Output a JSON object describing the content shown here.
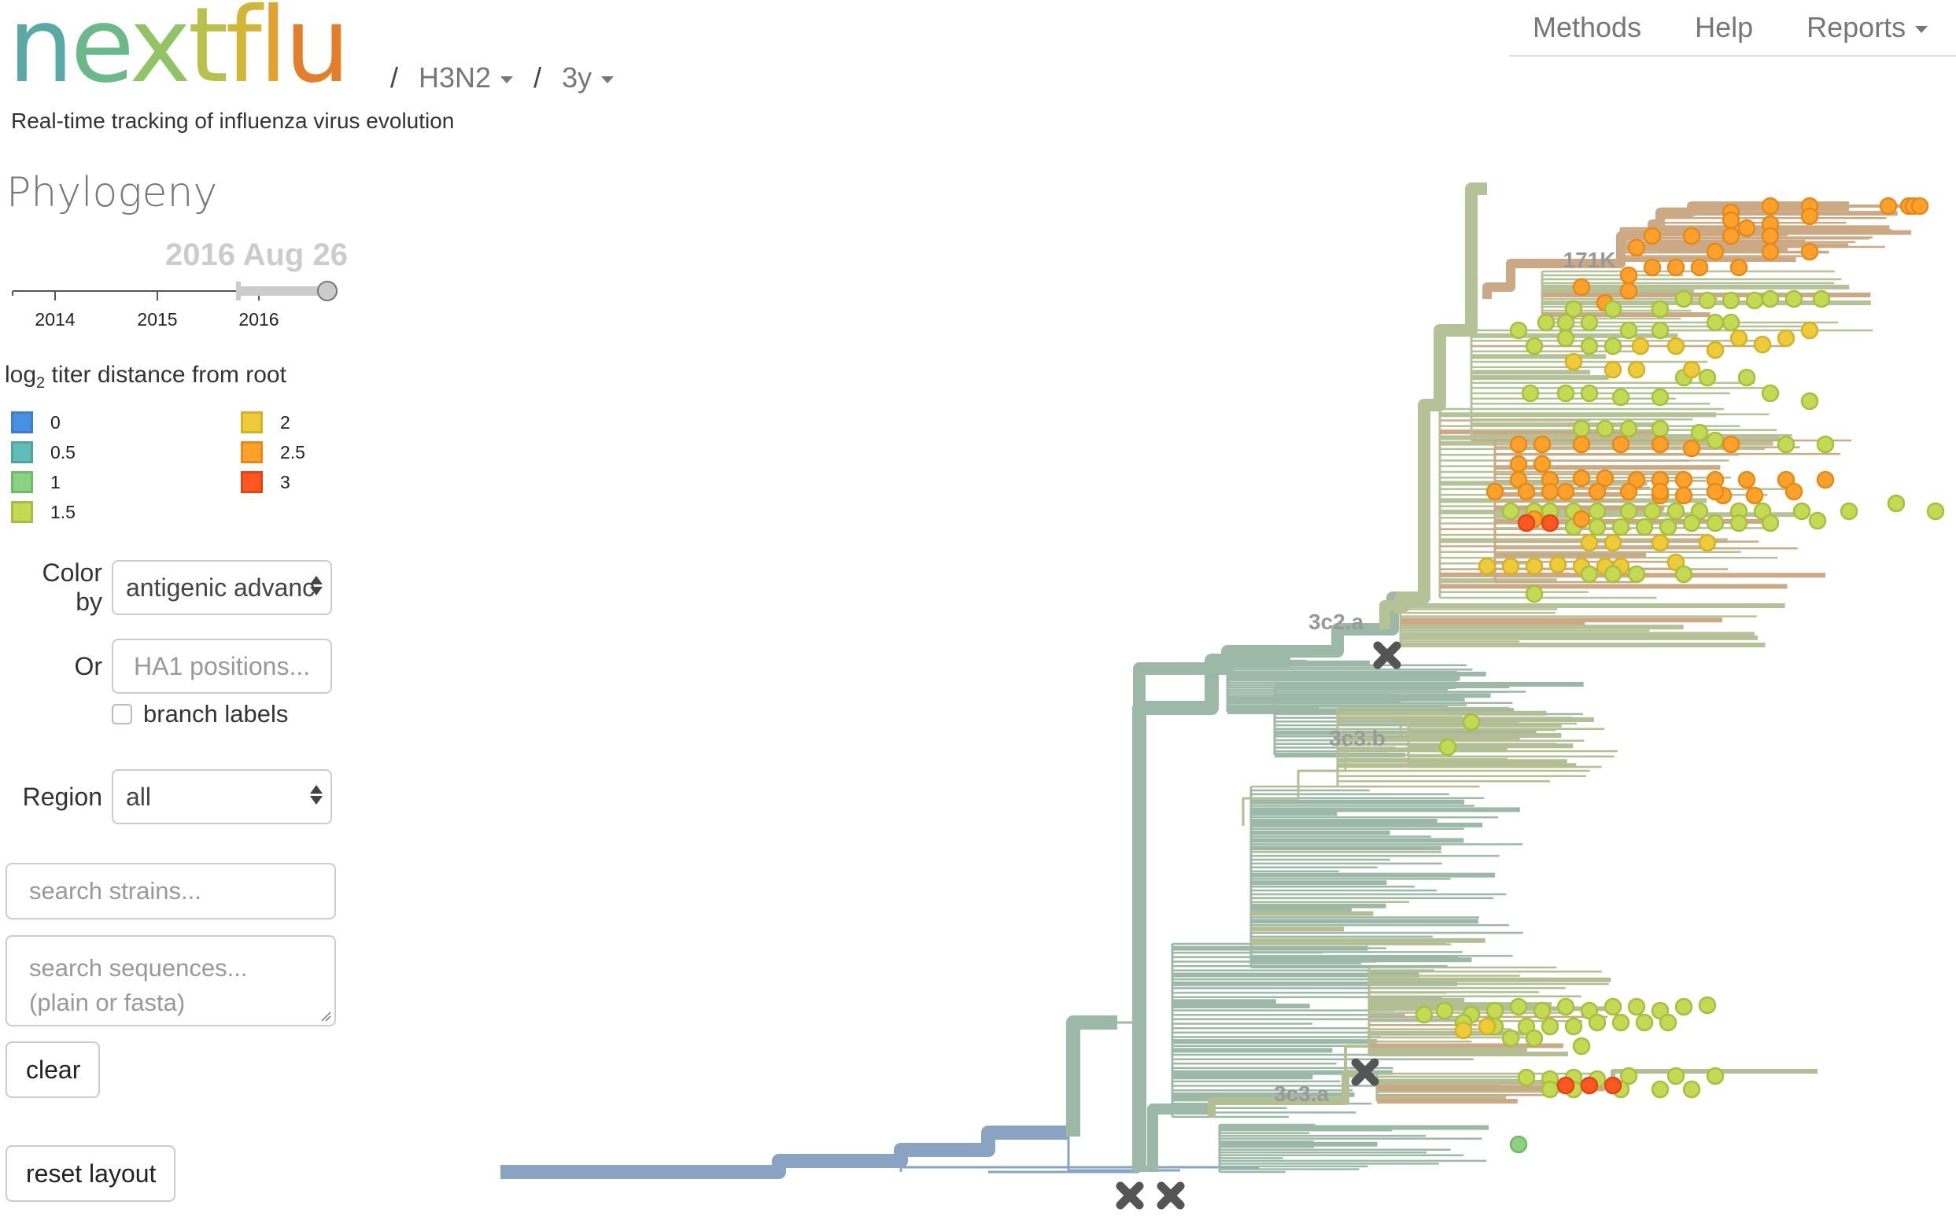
{
  "header": {
    "logo": {
      "letters": [
        {
          "ch": "n",
          "color": "#5AA9A7"
        },
        {
          "ch": "e",
          "color": "#6DB88A"
        },
        {
          "ch": "x",
          "color": "#92C366"
        },
        {
          "ch": "t",
          "color": "#B9C14C"
        },
        {
          "ch": "f",
          "color": "#D2B63A"
        },
        {
          "ch": "l",
          "color": "#E1A22F"
        },
        {
          "ch": "u",
          "color": "#E57E2A"
        }
      ]
    },
    "lineage": "H3N2",
    "resolution": "3y",
    "separator": "/",
    "tagline": "Real-time tracking of influenza virus evolution"
  },
  "nav": {
    "items": [
      "Methods",
      "Help",
      "Reports"
    ]
  },
  "sidebar": {
    "title": "Phylogeny",
    "date_label": "2016 Aug 26",
    "timeline": {
      "ticks": [
        "2014",
        "2015",
        "2016"
      ],
      "selected_start": "2015.85",
      "selected_end": "2016.65"
    },
    "legend": {
      "title_prefix": "log",
      "title_sub": "2",
      "title_suffix": " titer distance from root",
      "items": [
        {
          "label": "0",
          "fill": "#4A90E2",
          "stroke": "#3F7ECB"
        },
        {
          "label": "0.5",
          "fill": "#62BDBA",
          "stroke": "#4FA4A1"
        },
        {
          "label": "1",
          "fill": "#8CD283",
          "stroke": "#74B86B"
        },
        {
          "label": "1.5",
          "fill": "#C4DA55",
          "stroke": "#A8BE40"
        },
        {
          "label": "2",
          "fill": "#EDCB3B",
          "stroke": "#D3B12A"
        },
        {
          "label": "2.5",
          "fill": "#FFA12B",
          "stroke": "#E48A1A"
        },
        {
          "label": "3",
          "fill": "#FF5722",
          "stroke": "#E04515"
        }
      ]
    },
    "color_by_label": "Color by",
    "color_by_value": "antigenic advanc",
    "or_label": "Or",
    "positions_placeholder": "HA1 positions...",
    "branch_labels": "branch labels",
    "region_label": "Region",
    "region_value": "all",
    "search_strains_placeholder": "search strains...",
    "search_sequences_placeholder": "search sequences... (plain or fasta)",
    "clear_label": "clear",
    "reset_label": "reset layout"
  },
  "tree": {
    "clade_labels": [
      {
        "text": "171K"
      },
      {
        "text": "3c2.a"
      },
      {
        "text": "3c3.b"
      },
      {
        "text": "3c3.a"
      }
    ],
    "colors": {
      "root": "#8AA3C3",
      "base": "#9CB9A8",
      "c3c3": "#B4BE92",
      "c3c2a": "#B5C196",
      "k171": "#CCA985",
      "marker": "#555555",
      "label": "#999999"
    }
  }
}
